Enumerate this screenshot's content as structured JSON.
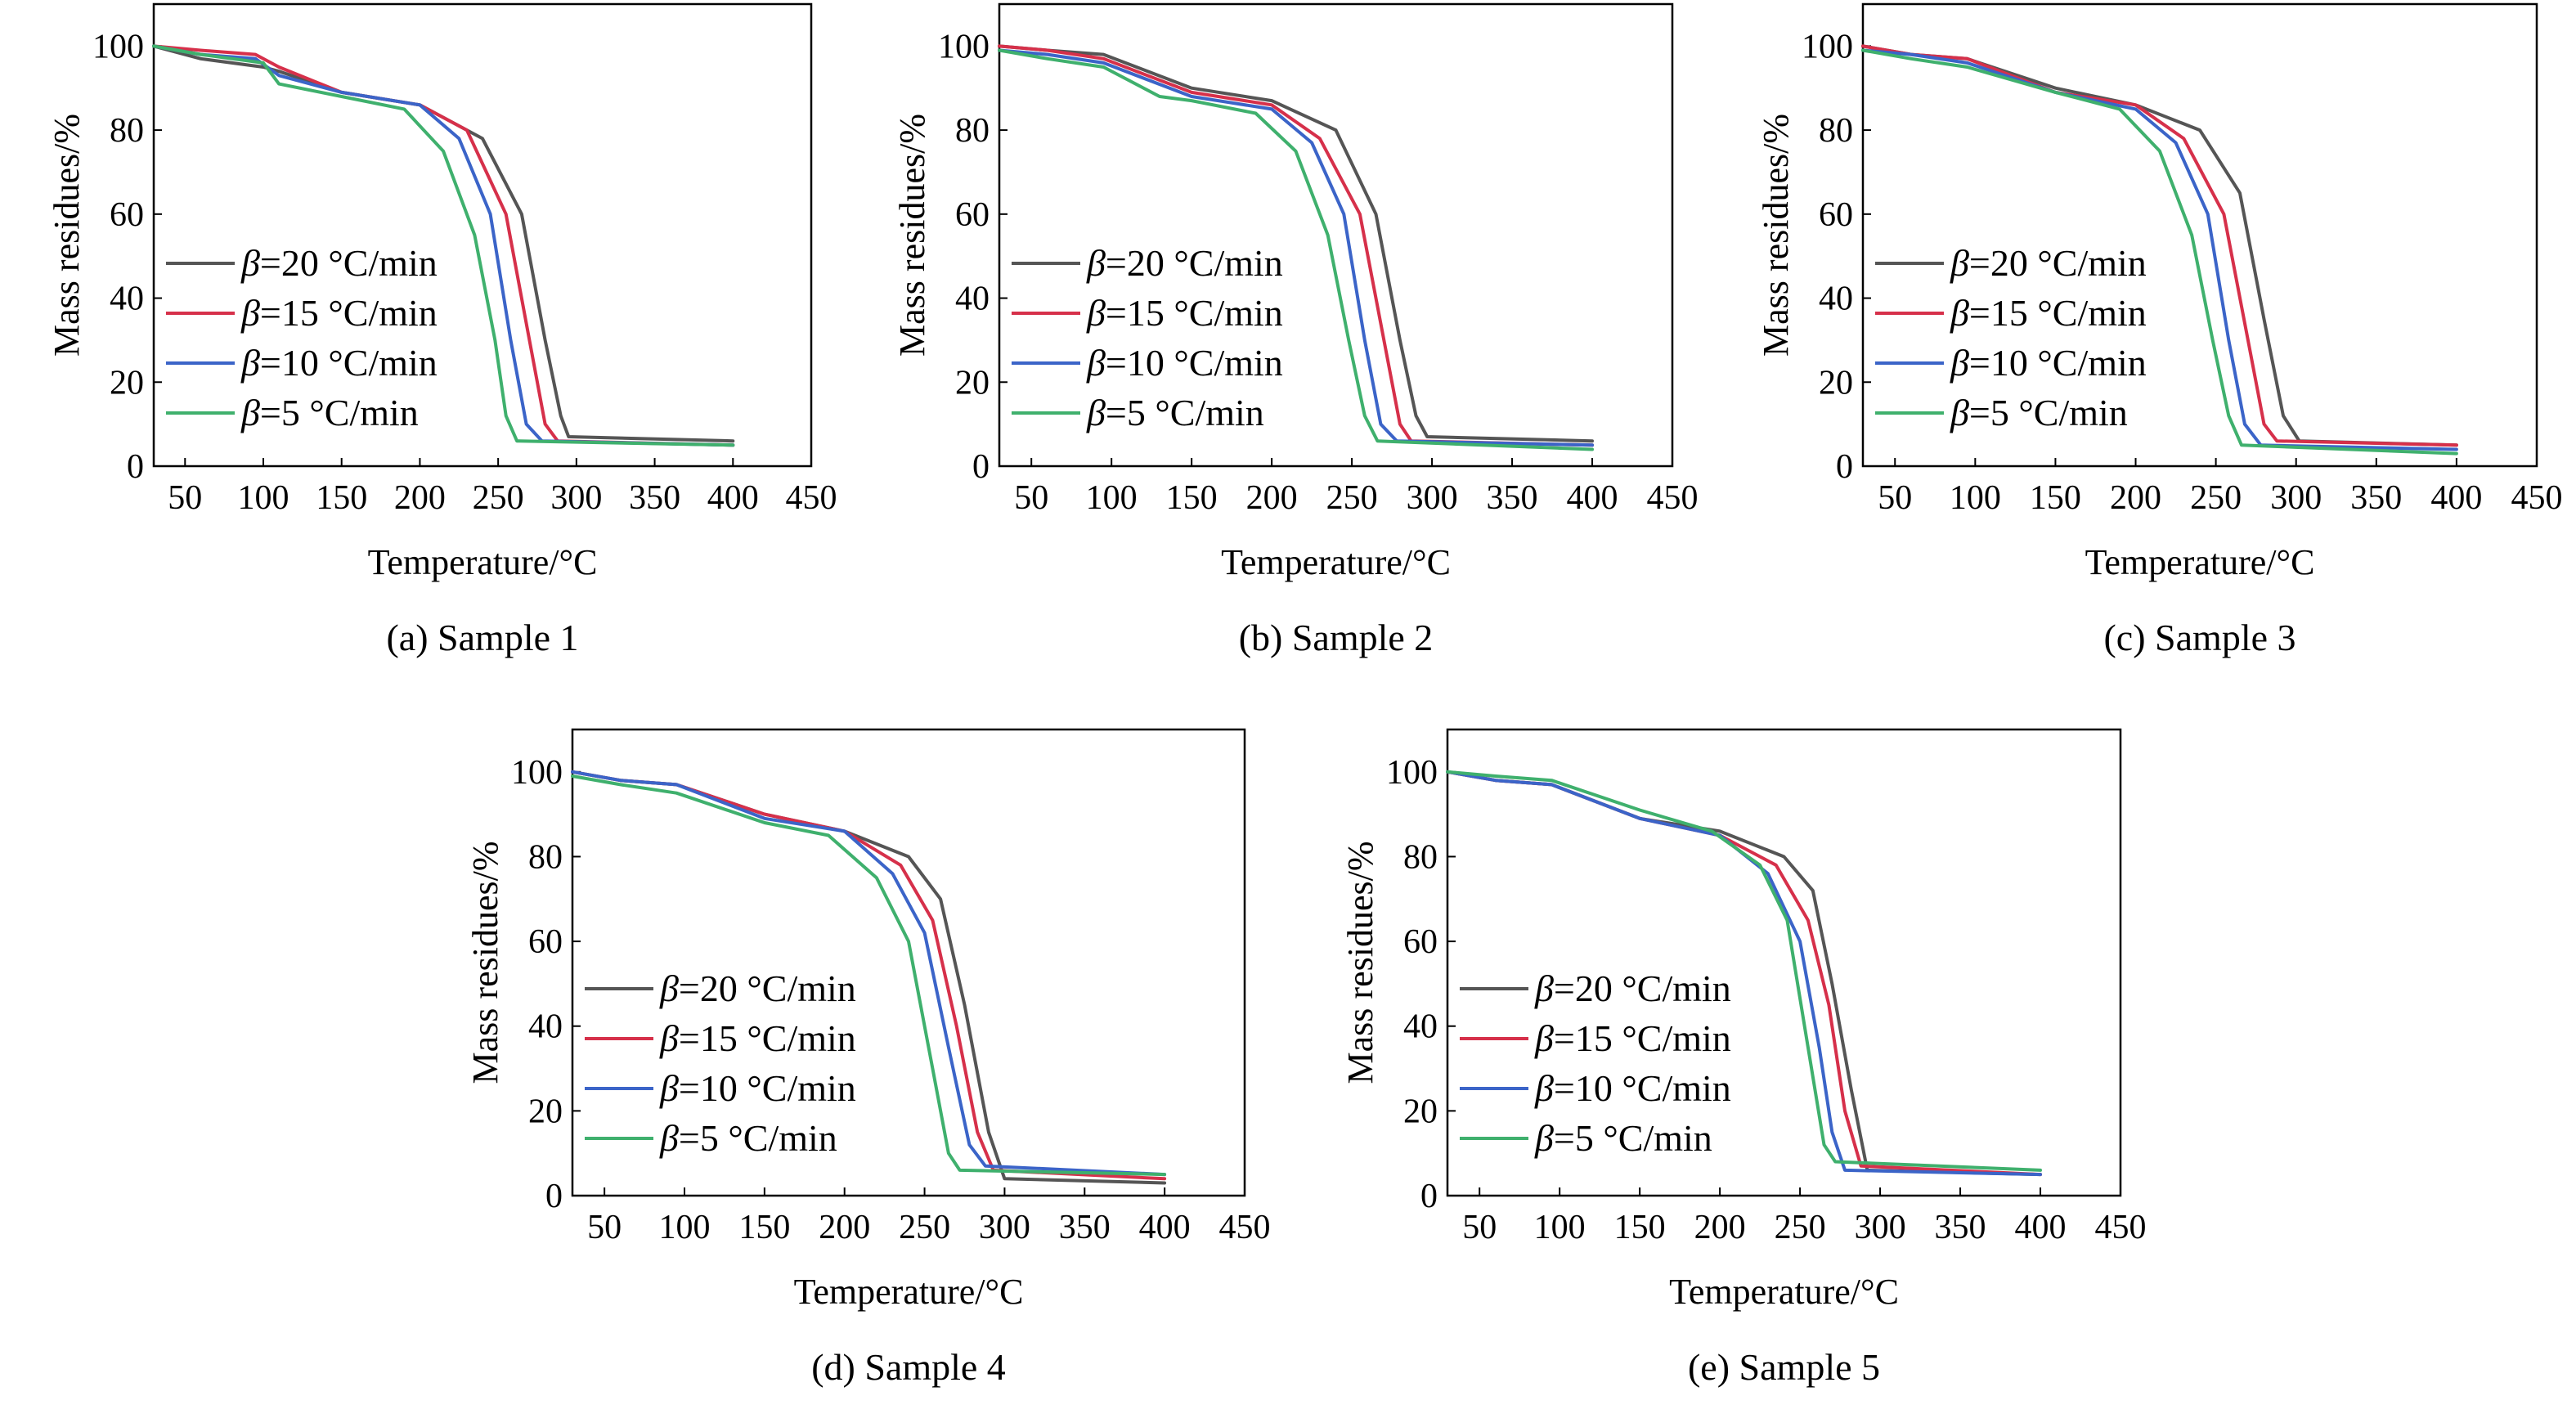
{
  "figure": {
    "series_colors": [
      "#555555",
      "#d6304a",
      "#3b64c8",
      "#3fb06d"
    ]
  },
  "chart_data": [
    {
      "type": "line",
      "caption": "(a) Sample 1",
      "xlabel": "Temperature/°C",
      "ylabel": "Mass residues/%",
      "xlim": [
        30,
        450
      ],
      "ylim": [
        0,
        110
      ],
      "xticks": [
        50,
        100,
        150,
        200,
        250,
        300,
        350,
        400,
        450
      ],
      "yticks": [
        0,
        20,
        40,
        60,
        80,
        100
      ],
      "legend": "upper-left inside, below curves",
      "series": [
        {
          "beta": "20 °C/min",
          "x": [
            30,
            60,
            100,
            110,
            150,
            200,
            240,
            265,
            280,
            290,
            295,
            400
          ],
          "y": [
            100,
            97,
            95,
            94,
            89,
            86,
            78,
            60,
            30,
            12,
            7,
            6
          ]
        },
        {
          "beta": "15 °C/min",
          "x": [
            30,
            60,
            95,
            110,
            150,
            200,
            230,
            255,
            270,
            280,
            288,
            400
          ],
          "y": [
            100,
            99,
            98,
            95,
            89,
            86,
            80,
            60,
            30,
            10,
            6,
            5
          ]
        },
        {
          "beta": "10 °C/min",
          "x": [
            30,
            60,
            95,
            110,
            150,
            200,
            225,
            245,
            258,
            268,
            278,
            400
          ],
          "y": [
            100,
            98,
            97,
            93,
            89,
            86,
            78,
            60,
            30,
            10,
            6,
            5
          ]
        },
        {
          "beta": "5 °C/min",
          "x": [
            30,
            60,
            100,
            110,
            150,
            190,
            215,
            235,
            248,
            255,
            262,
            400
          ],
          "y": [
            100,
            98,
            96,
            91,
            88,
            85,
            75,
            55,
            30,
            12,
            6,
            5
          ]
        }
      ]
    },
    {
      "type": "line",
      "caption": "(b) Sample 2",
      "xlabel": "Temperature/°C",
      "ylabel": "Mass residues/%",
      "xlim": [
        30,
        450
      ],
      "ylim": [
        0,
        110
      ],
      "xticks": [
        50,
        100,
        150,
        200,
        250,
        300,
        350,
        400,
        450
      ],
      "yticks": [
        0,
        20,
        40,
        60,
        80,
        100
      ],
      "legend": "upper-left inside, below curves",
      "series": [
        {
          "beta": "20 °C/min",
          "x": [
            30,
            60,
            95,
            150,
            200,
            240,
            265,
            280,
            290,
            297,
            400
          ],
          "y": [
            100,
            99,
            98,
            90,
            87,
            80,
            60,
            30,
            12,
            7,
            6
          ]
        },
        {
          "beta": "15 °C/min",
          "x": [
            30,
            60,
            95,
            150,
            200,
            230,
            255,
            270,
            280,
            287,
            400
          ],
          "y": [
            100,
            99,
            97,
            89,
            86,
            78,
            60,
            30,
            10,
            6,
            5
          ]
        },
        {
          "beta": "10 °C/min",
          "x": [
            30,
            60,
            95,
            150,
            200,
            225,
            245,
            258,
            268,
            278,
            400
          ],
          "y": [
            99,
            98,
            96,
            88,
            85,
            77,
            60,
            30,
            10,
            6,
            5
          ]
        },
        {
          "beta": "5 °C/min",
          "x": [
            30,
            60,
            95,
            130,
            150,
            190,
            215,
            235,
            248,
            258,
            266,
            400
          ],
          "y": [
            99,
            97,
            95,
            88,
            87,
            84,
            75,
            55,
            30,
            12,
            6,
            4
          ]
        }
      ]
    },
    {
      "type": "line",
      "caption": "(c) Sample 3",
      "xlabel": "Temperature/°C",
      "ylabel": "Mass residues/%",
      "xlim": [
        30,
        450
      ],
      "ylim": [
        0,
        110
      ],
      "xticks": [
        50,
        100,
        150,
        200,
        250,
        300,
        350,
        400,
        450
      ],
      "yticks": [
        0,
        20,
        40,
        60,
        80,
        100
      ],
      "legend": "upper-left inside, below curves",
      "series": [
        {
          "beta": "20 °C/min",
          "x": [
            30,
            60,
            95,
            150,
            200,
            240,
            265,
            280,
            292,
            302,
            400
          ],
          "y": [
            100,
            98,
            97,
            90,
            86,
            80,
            65,
            35,
            12,
            6,
            5
          ]
        },
        {
          "beta": "15 °C/min",
          "x": [
            30,
            60,
            95,
            150,
            200,
            230,
            255,
            270,
            280,
            288,
            400
          ],
          "y": [
            100,
            98,
            97,
            89,
            86,
            78,
            60,
            30,
            10,
            6,
            5
          ]
        },
        {
          "beta": "10 °C/min",
          "x": [
            30,
            60,
            95,
            150,
            200,
            225,
            245,
            258,
            268,
            278,
            400
          ],
          "y": [
            99,
            98,
            96,
            89,
            85,
            77,
            60,
            30,
            10,
            5,
            4
          ]
        },
        {
          "beta": "5 °C/min",
          "x": [
            30,
            60,
            95,
            150,
            190,
            215,
            235,
            248,
            258,
            266,
            400
          ],
          "y": [
            99,
            97,
            95,
            89,
            85,
            75,
            55,
            30,
            12,
            5,
            3
          ]
        }
      ]
    },
    {
      "type": "line",
      "caption": "(d) Sample 4",
      "xlabel": "Temperature/°C",
      "ylabel": "Mass residues/%",
      "xlim": [
        30,
        450
      ],
      "ylim": [
        0,
        110
      ],
      "xticks": [
        50,
        100,
        150,
        200,
        250,
        300,
        350,
        400,
        450
      ],
      "yticks": [
        0,
        20,
        40,
        60,
        80,
        100
      ],
      "legend": "upper-left inside, below curves",
      "series": [
        {
          "beta": "20 °C/min",
          "x": [
            30,
            60,
            95,
            150,
            200,
            240,
            260,
            275,
            290,
            300,
            400
          ],
          "y": [
            100,
            98,
            97,
            90,
            86,
            80,
            70,
            45,
            15,
            4,
            3
          ]
        },
        {
          "beta": "15 °C/min",
          "x": [
            30,
            60,
            95,
            150,
            200,
            235,
            255,
            270,
            283,
            293,
            400
          ],
          "y": [
            100,
            98,
            97,
            90,
            86,
            78,
            65,
            40,
            15,
            6,
            4
          ]
        },
        {
          "beta": "10 °C/min",
          "x": [
            30,
            60,
            95,
            150,
            200,
            230,
            250,
            265,
            278,
            288,
            400
          ],
          "y": [
            100,
            98,
            97,
            89,
            86,
            76,
            62,
            35,
            12,
            7,
            5
          ]
        },
        {
          "beta": "5 °C/min",
          "x": [
            30,
            60,
            95,
            150,
            190,
            220,
            240,
            255,
            265,
            272,
            400
          ],
          "y": [
            99,
            97,
            95,
            88,
            85,
            75,
            60,
            30,
            10,
            6,
            5
          ]
        }
      ]
    },
    {
      "type": "line",
      "caption": "(e) Sample 5",
      "xlabel": "Temperature/°C",
      "ylabel": "Mass residues/%",
      "xlim": [
        30,
        450
      ],
      "ylim": [
        0,
        110
      ],
      "xticks": [
        50,
        100,
        150,
        200,
        250,
        300,
        350,
        400,
        450
      ],
      "yticks": [
        0,
        20,
        40,
        60,
        80,
        100
      ],
      "legend": "upper-left inside, below curves",
      "series": [
        {
          "beta": "20 °C/min",
          "x": [
            30,
            60,
            95,
            150,
            200,
            240,
            258,
            270,
            282,
            292,
            400
          ],
          "y": [
            100,
            98,
            97,
            89,
            86,
            80,
            72,
            50,
            25,
            6,
            5
          ]
        },
        {
          "beta": "15 °C/min",
          "x": [
            30,
            60,
            95,
            150,
            200,
            235,
            255,
            268,
            278,
            288,
            400
          ],
          "y": [
            100,
            98,
            97,
            89,
            85,
            78,
            65,
            45,
            20,
            7,
            5
          ]
        },
        {
          "beta": "10 °C/min",
          "x": [
            30,
            60,
            95,
            150,
            200,
            230,
            250,
            262,
            270,
            278,
            400
          ],
          "y": [
            100,
            98,
            97,
            89,
            85,
            76,
            60,
            35,
            15,
            6,
            5
          ]
        },
        {
          "beta": "5 °C/min",
          "x": [
            30,
            60,
            95,
            150,
            195,
            225,
            242,
            255,
            265,
            272,
            400
          ],
          "y": [
            100,
            99,
            98,
            91,
            86,
            78,
            65,
            35,
            12,
            8,
            6
          ]
        }
      ]
    }
  ]
}
